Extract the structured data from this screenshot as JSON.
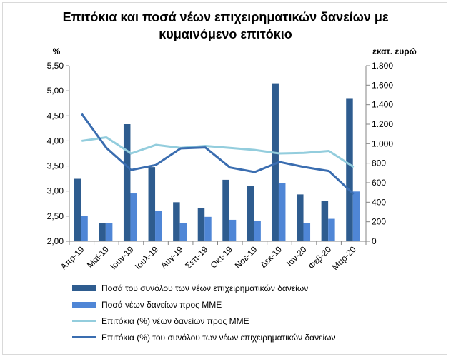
{
  "title_line1": "Επιτόκια και ποσά νέων επιχειρηματικών δανείων με",
  "title_line2": "κυμαινόμενο επιτόκιο",
  "chart_data": {
    "type": "bar",
    "categories": [
      "Απρ-19",
      "Μαϊ-19",
      "Ιουν-19",
      "Ιουλ-19",
      "Αυγ-19",
      "Σεπ-19",
      "Οκτ-19",
      "Νοε-19",
      "Δεκ-19",
      "Ιαν-20",
      "Φεβ-20",
      "Μαρ-20"
    ],
    "left_axis": {
      "label": "%",
      "min": 2.0,
      "max": 5.5,
      "ticks": [
        "2,00",
        "2,50",
        "3,00",
        "3,50",
        "4,00",
        "4,50",
        "5,00",
        "5,50"
      ],
      "tick_values": [
        2.0,
        2.5,
        3.0,
        3.5,
        4.0,
        4.5,
        5.0,
        5.5
      ]
    },
    "right_axis": {
      "label": "εκατ. ευρώ",
      "min": 0,
      "max": 1800,
      "ticks": [
        "0",
        "200",
        "400",
        "600",
        "800",
        "1.000",
        "1.200",
        "1.400",
        "1.600",
        "1.800"
      ],
      "tick_values": [
        0,
        200,
        400,
        600,
        800,
        1000,
        1200,
        1400,
        1600,
        1800
      ]
    },
    "series": [
      {
        "name": "Ποσά του συνόλου των νέων επιχειρηματικών δανείων",
        "kind": "bar",
        "axis": "right",
        "color": "#2e5c8f",
        "values": [
          640,
          190,
          1200,
          760,
          400,
          340,
          630,
          570,
          1620,
          480,
          410,
          1460
        ]
      },
      {
        "name": "Ποσά νέων δανείων προς ΜΜΕ",
        "kind": "bar",
        "axis": "right",
        "color": "#4f86d6",
        "values": [
          260,
          190,
          490,
          310,
          190,
          250,
          220,
          210,
          600,
          190,
          230,
          510
        ]
      },
      {
        "name": "Επιτόκια (%) νέων δανείων προς ΜΜΕ",
        "kind": "line",
        "axis": "left",
        "color": "#93cddd",
        "values": [
          4.0,
          4.07,
          3.75,
          3.92,
          3.86,
          3.9,
          3.86,
          3.82,
          3.75,
          3.76,
          3.8,
          3.48
        ]
      },
      {
        "name": "Επιτόκια (%) του συνόλου των νέων επιχειρηματικών δανείων",
        "kind": "line",
        "axis": "left",
        "color": "#3a6db0",
        "values": [
          4.54,
          3.86,
          3.42,
          3.52,
          3.85,
          3.87,
          3.47,
          3.38,
          3.58,
          3.48,
          3.4,
          2.94
        ]
      }
    ],
    "grid": false,
    "legend_position": "bottom"
  }
}
